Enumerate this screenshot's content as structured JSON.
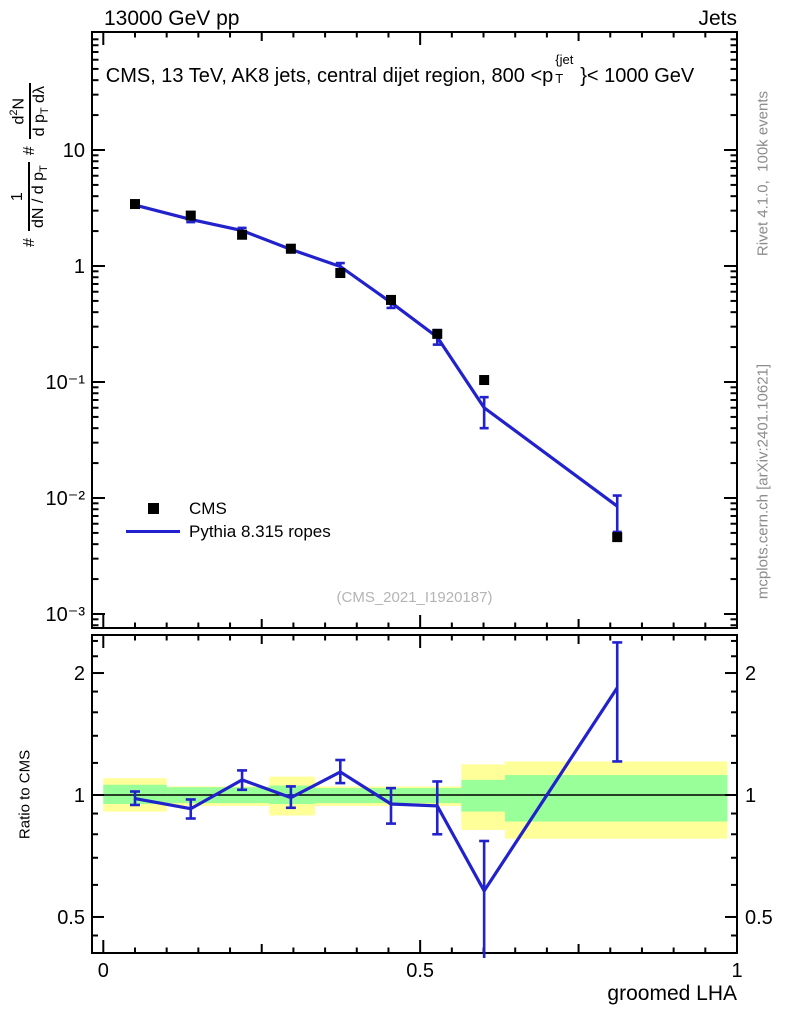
{
  "header": {
    "left_title": "13000 GeV pp",
    "right_title": "Jets"
  },
  "main_title": {
    "pre": "CMS, 13 TeV, AK8 jets, central dijet region, 800 <p",
    "sup": "{jet",
    "sub": "T",
    "post": "}< 1000 GeV"
  },
  "ylabel": {
    "hash1": "#",
    "frac1_num": "1",
    "frac1_den_pre": "dN / d p",
    "frac1_den_sub": "T",
    "hash2": "#",
    "frac2_num_pre": "d",
    "frac2_num_sup": "2",
    "frac2_num_post": "N",
    "frac2_den_pre": "d p",
    "frac2_den_sub": "T",
    "frac2_den_post": " dλ"
  },
  "legend": {
    "entries": [
      {
        "label": "CMS",
        "marker": "black-square"
      },
      {
        "label": "Pythia 8.315 ropes",
        "marker": "blue-line"
      }
    ]
  },
  "watermark": "(CMS_2021_I1920187)",
  "side_notes": {
    "top": "Rivet 4.1.0,  100k events",
    "bottom": "mcplots.cern.ch [arXiv:2401.10621]"
  },
  "ratio_label": "Ratio to CMS",
  "xlabel": "groomed LHA",
  "colors": {
    "pythia_blue": "#2222cc",
    "band_yellow": "#ffff99",
    "band_green": "#99ff99",
    "frame": "#000000",
    "note_gray": "#8c8c8c",
    "watermark_gray": "#b4b4b4"
  },
  "chart_data": {
    "type": "line",
    "title": "CMS, 13 TeV, AK8 jets, central dijet region, 800 < pT^{jet} < 1000 GeV",
    "xlabel": "groomed LHA",
    "ylabel": "# 1/(dN/dpT) # d2N/(dpT dlambda)",
    "xlim": [
      -0.018,
      1.0
    ],
    "xticks": [
      {
        "v": 0,
        "label": "0"
      },
      {
        "v": 0.5,
        "label": "0.5"
      },
      {
        "v": 1,
        "label": "1"
      }
    ],
    "x": [
      0.05,
      0.138,
      0.219,
      0.296,
      0.374,
      0.454,
      0.527,
      0.601,
      0.811
    ],
    "main_panel": {
      "yscale": "log",
      "ylim": [
        0.00077,
        104
      ],
      "yticks": [
        {
          "v": 10,
          "label": "10"
        },
        {
          "v": 1,
          "label": "1"
        },
        {
          "v": 0.1,
          "label": "10⁻¹"
        },
        {
          "v": 0.01,
          "label": "10⁻²"
        },
        {
          "v": 0.001,
          "label": "10⁻³"
        }
      ]
    },
    "series": [
      {
        "name": "CMS",
        "type": "scatter",
        "marker": "square",
        "color": "#000000",
        "values": [
          3.42,
          2.72,
          1.86,
          1.41,
          0.87,
          0.51,
          0.26,
          0.104,
          0.0046
        ]
      },
      {
        "name": "Pythia 8.315 ropes",
        "type": "line",
        "color": "#2222cc",
        "values": [
          3.35,
          2.52,
          2.02,
          1.39,
          0.99,
          0.485,
          0.244,
          0.06,
          0.0085
        ],
        "err_lo": [
          3.25,
          2.39,
          1.91,
          1.31,
          0.93,
          0.435,
          0.21,
          0.04,
          0.0051
        ],
        "err_hi": [
          3.45,
          2.64,
          2.13,
          1.47,
          1.06,
          0.53,
          0.28,
          0.074,
          0.0105
        ]
      }
    ],
    "ratio_panel": {
      "ylabel": "Ratio to CMS",
      "yscale": "log",
      "ylim": [
        0.4,
        2.52
      ],
      "reference_line": 1,
      "yticks": [
        {
          "v": 0.5,
          "label": "0.5"
        },
        {
          "v": 1,
          "label": "1"
        },
        {
          "v": 2,
          "label": "2"
        }
      ],
      "ratio": [
        0.98,
        0.925,
        1.09,
        0.985,
        1.14,
        0.95,
        0.94,
        0.58,
        1.84
      ],
      "err_lo": [
        0.945,
        0.875,
        1.03,
        0.93,
        1.07,
        0.85,
        0.8,
        0.33,
        1.21
      ],
      "err_hi": [
        1.02,
        0.975,
        1.15,
        1.05,
        1.22,
        1.04,
        1.08,
        0.77,
        2.38
      ],
      "bands": [
        {
          "x": [
            0.0,
            0.1
          ],
          "yellow": [
            0.91,
            1.1
          ],
          "green": [
            0.95,
            1.06
          ]
        },
        {
          "x": [
            0.1,
            0.177
          ],
          "yellow": [
            0.94,
            1.05
          ],
          "green": [
            0.955,
            1.045
          ]
        },
        {
          "x": [
            0.177,
            0.262
          ],
          "yellow": [
            0.94,
            1.05
          ],
          "green": [
            0.955,
            1.045
          ]
        },
        {
          "x": [
            0.262,
            0.334
          ],
          "yellow": [
            0.89,
            1.11
          ],
          "green": [
            0.95,
            1.055
          ]
        },
        {
          "x": [
            0.334,
            0.565
          ],
          "yellow": [
            0.94,
            1.05
          ],
          "green": [
            0.955,
            1.04
          ]
        },
        {
          "x": [
            0.565,
            0.634
          ],
          "yellow": [
            0.82,
            1.19
          ],
          "green": [
            0.91,
            1.09
          ]
        },
        {
          "x": [
            0.634,
            0.985
          ],
          "yellow": [
            0.78,
            1.21
          ],
          "green": [
            0.86,
            1.12
          ]
        }
      ]
    }
  }
}
